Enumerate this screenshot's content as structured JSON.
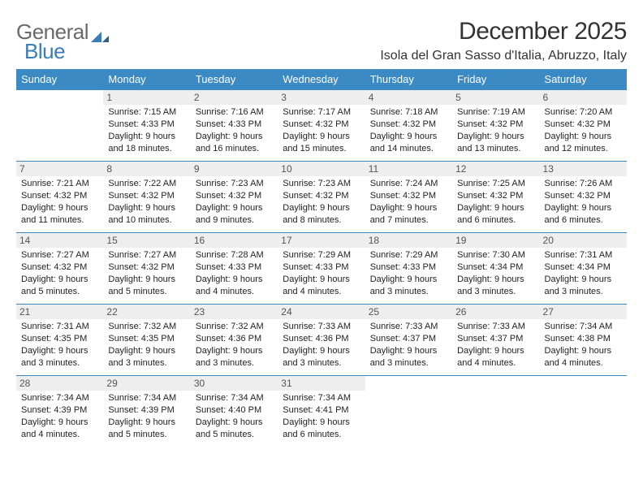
{
  "logo": {
    "part1": "General",
    "part2": "Blue"
  },
  "title": "December 2025",
  "location": "Isola del Gran Sasso d'Italia, Abruzzo, Italy",
  "colors": {
    "header_bg": "#3b8ac4",
    "header_text": "#ffffff",
    "daynum_bg": "#eeeeee",
    "border": "#3b8ac4",
    "title_text": "#333333",
    "body_text": "#222222",
    "logo_gray": "#6a6a6a",
    "logo_blue": "#3a7db8"
  },
  "weekdays": [
    "Sunday",
    "Monday",
    "Tuesday",
    "Wednesday",
    "Thursday",
    "Friday",
    "Saturday"
  ],
  "weeks": [
    [
      null,
      {
        "n": "1",
        "sr": "7:15 AM",
        "ss": "4:33 PM",
        "dl": "9 hours and 18 minutes."
      },
      {
        "n": "2",
        "sr": "7:16 AM",
        "ss": "4:33 PM",
        "dl": "9 hours and 16 minutes."
      },
      {
        "n": "3",
        "sr": "7:17 AM",
        "ss": "4:32 PM",
        "dl": "9 hours and 15 minutes."
      },
      {
        "n": "4",
        "sr": "7:18 AM",
        "ss": "4:32 PM",
        "dl": "9 hours and 14 minutes."
      },
      {
        "n": "5",
        "sr": "7:19 AM",
        "ss": "4:32 PM",
        "dl": "9 hours and 13 minutes."
      },
      {
        "n": "6",
        "sr": "7:20 AM",
        "ss": "4:32 PM",
        "dl": "9 hours and 12 minutes."
      }
    ],
    [
      {
        "n": "7",
        "sr": "7:21 AM",
        "ss": "4:32 PM",
        "dl": "9 hours and 11 minutes."
      },
      {
        "n": "8",
        "sr": "7:22 AM",
        "ss": "4:32 PM",
        "dl": "9 hours and 10 minutes."
      },
      {
        "n": "9",
        "sr": "7:23 AM",
        "ss": "4:32 PM",
        "dl": "9 hours and 9 minutes."
      },
      {
        "n": "10",
        "sr": "7:23 AM",
        "ss": "4:32 PM",
        "dl": "9 hours and 8 minutes."
      },
      {
        "n": "11",
        "sr": "7:24 AM",
        "ss": "4:32 PM",
        "dl": "9 hours and 7 minutes."
      },
      {
        "n": "12",
        "sr": "7:25 AM",
        "ss": "4:32 PM",
        "dl": "9 hours and 6 minutes."
      },
      {
        "n": "13",
        "sr": "7:26 AM",
        "ss": "4:32 PM",
        "dl": "9 hours and 6 minutes."
      }
    ],
    [
      {
        "n": "14",
        "sr": "7:27 AM",
        "ss": "4:32 PM",
        "dl": "9 hours and 5 minutes."
      },
      {
        "n": "15",
        "sr": "7:27 AM",
        "ss": "4:32 PM",
        "dl": "9 hours and 5 minutes."
      },
      {
        "n": "16",
        "sr": "7:28 AM",
        "ss": "4:33 PM",
        "dl": "9 hours and 4 minutes."
      },
      {
        "n": "17",
        "sr": "7:29 AM",
        "ss": "4:33 PM",
        "dl": "9 hours and 4 minutes."
      },
      {
        "n": "18",
        "sr": "7:29 AM",
        "ss": "4:33 PM",
        "dl": "9 hours and 3 minutes."
      },
      {
        "n": "19",
        "sr": "7:30 AM",
        "ss": "4:34 PM",
        "dl": "9 hours and 3 minutes."
      },
      {
        "n": "20",
        "sr": "7:31 AM",
        "ss": "4:34 PM",
        "dl": "9 hours and 3 minutes."
      }
    ],
    [
      {
        "n": "21",
        "sr": "7:31 AM",
        "ss": "4:35 PM",
        "dl": "9 hours and 3 minutes."
      },
      {
        "n": "22",
        "sr": "7:32 AM",
        "ss": "4:35 PM",
        "dl": "9 hours and 3 minutes."
      },
      {
        "n": "23",
        "sr": "7:32 AM",
        "ss": "4:36 PM",
        "dl": "9 hours and 3 minutes."
      },
      {
        "n": "24",
        "sr": "7:33 AM",
        "ss": "4:36 PM",
        "dl": "9 hours and 3 minutes."
      },
      {
        "n": "25",
        "sr": "7:33 AM",
        "ss": "4:37 PM",
        "dl": "9 hours and 3 minutes."
      },
      {
        "n": "26",
        "sr": "7:33 AM",
        "ss": "4:37 PM",
        "dl": "9 hours and 4 minutes."
      },
      {
        "n": "27",
        "sr": "7:34 AM",
        "ss": "4:38 PM",
        "dl": "9 hours and 4 minutes."
      }
    ],
    [
      {
        "n": "28",
        "sr": "7:34 AM",
        "ss": "4:39 PM",
        "dl": "9 hours and 4 minutes."
      },
      {
        "n": "29",
        "sr": "7:34 AM",
        "ss": "4:39 PM",
        "dl": "9 hours and 5 minutes."
      },
      {
        "n": "30",
        "sr": "7:34 AM",
        "ss": "4:40 PM",
        "dl": "9 hours and 5 minutes."
      },
      {
        "n": "31",
        "sr": "7:34 AM",
        "ss": "4:41 PM",
        "dl": "9 hours and 6 minutes."
      },
      null,
      null,
      null
    ]
  ]
}
